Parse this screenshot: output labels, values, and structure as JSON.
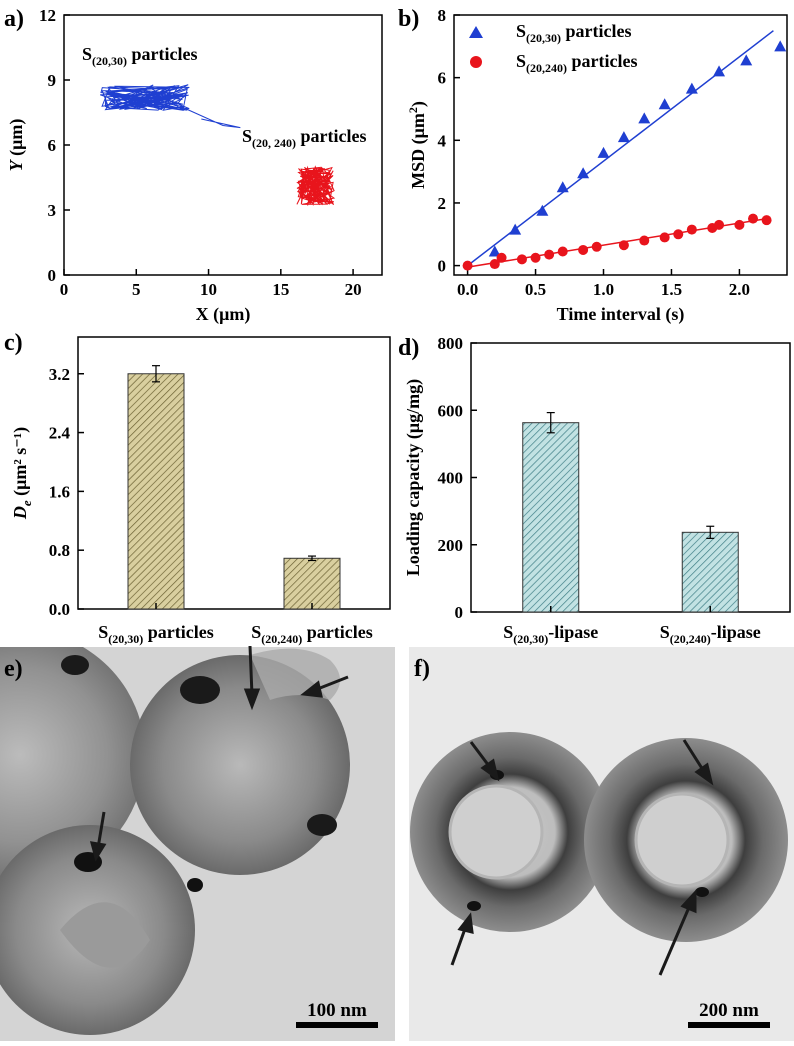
{
  "panels": {
    "a": "a)",
    "b": "b)",
    "c": "c)",
    "d": "d)",
    "e": "e)",
    "f": "f)"
  },
  "chart_data": [
    {
      "id": "a",
      "type": "line",
      "xlabel_main": "X",
      "xlabel_unit": "(μm)",
      "ylabel_main": "Y",
      "ylabel_unit": "(μm)",
      "xlim": [
        0,
        22
      ],
      "ylim": [
        0,
        12
      ],
      "xticks": [
        "0",
        "5",
        "10",
        "15",
        "20"
      ],
      "yticks": [
        "0",
        "3",
        "6",
        "9",
        "12"
      ],
      "annotations": [
        {
          "main": "S",
          "sub": "(20,30)",
          "rest": " particles"
        },
        {
          "main": "S",
          "sub": "(20, 240)",
          "rest": " particles"
        }
      ],
      "series": [
        {
          "color": "#1f3fd1",
          "center": [
            5.5,
            8.2
          ],
          "spread": [
            3.2,
            0.6
          ]
        },
        {
          "color": "#e8141c",
          "center": [
            17.4,
            4.1
          ],
          "spread": [
            1.3,
            0.9
          ]
        }
      ]
    },
    {
      "id": "b",
      "type": "scatter",
      "xlabel": "Time interval (s)",
      "ylabel_main": "MSD",
      "ylabel_unit_pre": "(μm",
      "ylabel_unit_sup": "2",
      "ylabel_unit_post": ")",
      "xlim": [
        -0.1,
        2.35
      ],
      "ylim": [
        -0.3,
        8
      ],
      "xticks": [
        "0.0",
        "0.5",
        "1.0",
        "1.5",
        "2.0"
      ],
      "yticks": [
        "0",
        "2",
        "4",
        "6",
        "8"
      ],
      "series": [
        {
          "label_main": "S",
          "label_sub": "(20,30)",
          "label_rest": " particles",
          "color": "#1f3fd1",
          "marker": "triangle",
          "x": [
            0.2,
            0.35,
            0.55,
            0.7,
            0.85,
            1.0,
            1.15,
            1.3,
            1.45,
            1.65,
            1.85,
            2.05,
            2.3
          ],
          "y": [
            0.45,
            1.15,
            1.75,
            2.5,
            2.95,
            3.6,
            4.1,
            4.7,
            5.15,
            5.65,
            6.2,
            6.55,
            7.0
          ],
          "fit": [
            [
              0,
              0.0
            ],
            [
              2.25,
              7.5
            ]
          ]
        },
        {
          "label_main": "S",
          "label_sub": "(20,240)",
          "label_rest": " particles",
          "color": "#e8141c",
          "marker": "circle",
          "x": [
            0.0,
            0.2,
            0.25,
            0.4,
            0.5,
            0.6,
            0.7,
            0.85,
            0.95,
            1.15,
            1.3,
            1.45,
            1.55,
            1.65,
            1.8,
            1.85,
            2.0,
            2.1,
            2.2
          ],
          "y": [
            0.0,
            0.05,
            0.25,
            0.2,
            0.25,
            0.35,
            0.45,
            0.5,
            0.6,
            0.65,
            0.8,
            0.9,
            1.0,
            1.15,
            1.2,
            1.3,
            1.3,
            1.5,
            1.45
          ],
          "fit": [
            [
              0,
              -0.05
            ],
            [
              2.2,
              1.5
            ]
          ]
        }
      ]
    },
    {
      "id": "c",
      "type": "bar",
      "ylabel_main": "D",
      "ylabel_main_sub": "e",
      "ylabel_unit": "(μm² s⁻¹)",
      "ylim": [
        0,
        3.7
      ],
      "yticks": [
        "0.0",
        "0.8",
        "1.6",
        "2.4",
        "3.2"
      ],
      "categories": [
        {
          "main": "S",
          "sub": "(20,30)",
          "rest": " particles"
        },
        {
          "main": "S",
          "sub": "(20,240)",
          "rest": " particles"
        }
      ],
      "values": [
        3.2,
        0.69
      ],
      "errors": [
        0.11,
        0.03
      ],
      "color": "#b8ab78"
    },
    {
      "id": "d",
      "type": "bar",
      "ylabel": "Loading capacity (μg/mg)",
      "ylim": [
        0,
        800
      ],
      "yticks": [
        "0",
        "200",
        "400",
        "600",
        "800"
      ],
      "categories": [
        {
          "main": "S",
          "sub": "(20,30)",
          "rest": "-lipase"
        },
        {
          "main": "S",
          "sub": "(20,240)",
          "rest": "-lipase"
        }
      ],
      "values": [
        563,
        237
      ],
      "errors": [
        30,
        18
      ],
      "color": "#95c6c8"
    }
  ],
  "micrographs": {
    "e_scale": "100 nm",
    "f_scale": "200 nm"
  }
}
